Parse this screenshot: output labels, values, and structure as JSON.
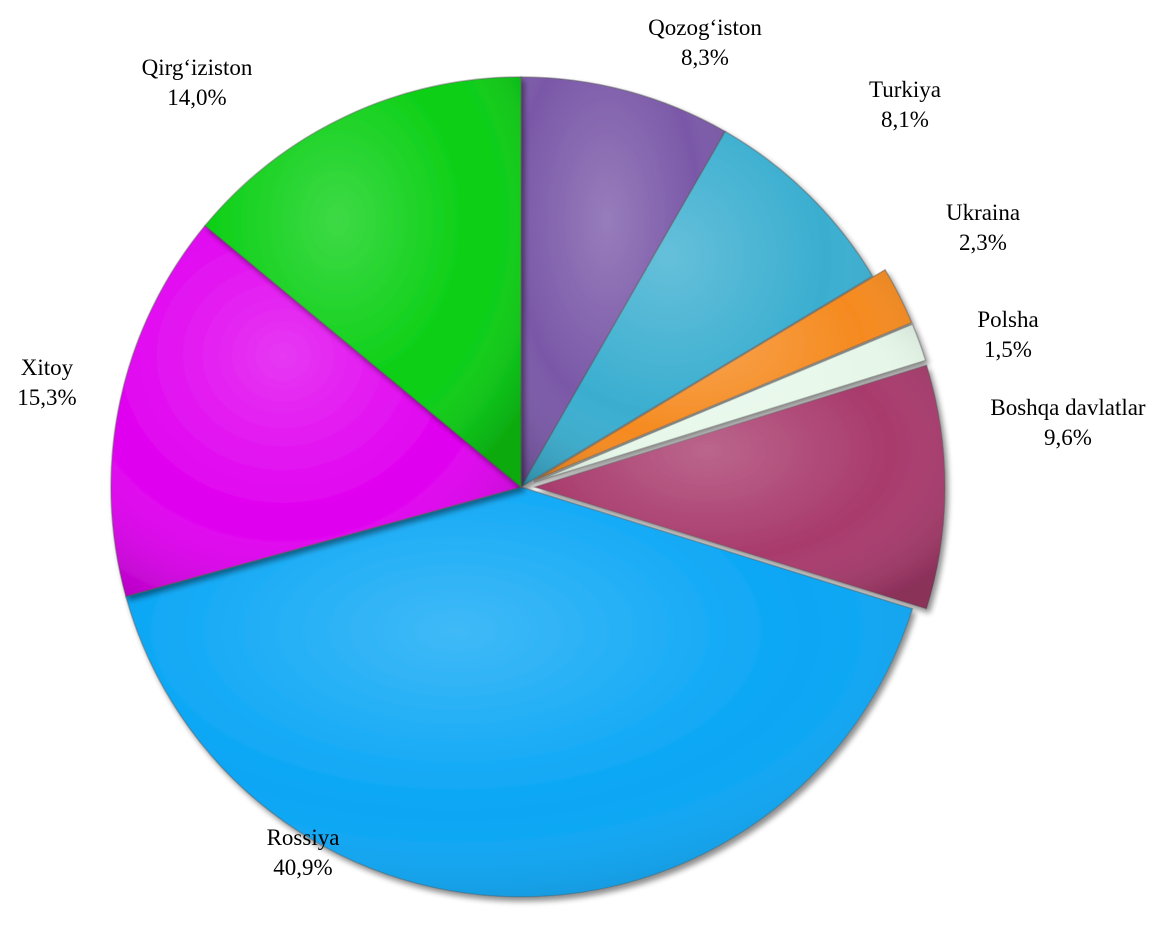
{
  "chart_data": {
    "type": "pie",
    "title": "",
    "unit": "%",
    "slices": [
      {
        "label": "Qozog‘iston",
        "value": 8.3,
        "display": "8,3%",
        "color": "#7a58a8",
        "explode": false
      },
      {
        "label": "Turkiya",
        "value": 8.1,
        "display": "8,1%",
        "color": "#3aaed0",
        "explode": false
      },
      {
        "label": "Ukraina",
        "value": 2.3,
        "display": "2,3%",
        "color": "#f58a1f",
        "explode": true
      },
      {
        "label": "Polsha",
        "value": 1.5,
        "display": "1,5%",
        "color": "#e6f7e9",
        "explode": true
      },
      {
        "label": "Boshqa davlatlar",
        "value": 9.6,
        "display": "9,6%",
        "color": "#a83a6c",
        "explode": true
      },
      {
        "label": "Rossiya",
        "value": 40.9,
        "display": "40,9%",
        "color": "#0aa6f5",
        "explode": false
      },
      {
        "label": "Xitoy",
        "value": 15.3,
        "display": "15,3%",
        "color": "#e000f0",
        "explode": false
      },
      {
        "label": "Qirg‘iziston",
        "value": 14.0,
        "display": "14,0%",
        "color": "#08cf12",
        "explode": false
      }
    ]
  }
}
